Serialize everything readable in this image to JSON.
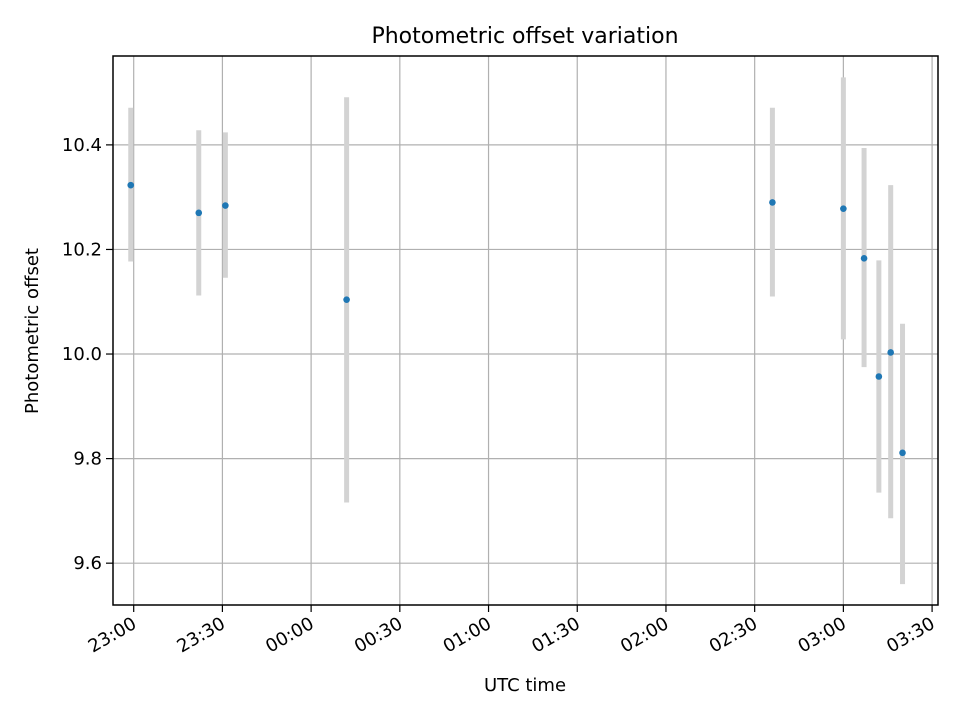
{
  "chart_data": {
    "type": "scatter",
    "title": "Photometric offset variation",
    "xlabel": "UTC time",
    "ylabel": "Photometric offset",
    "x_ticks": [
      "23:00",
      "23:30",
      "00:00",
      "00:30",
      "01:00",
      "01:30",
      "02:00",
      "02:30",
      "03:00",
      "03:30"
    ],
    "y_ticks": [
      "9.6",
      "9.8",
      "10.0",
      "10.2",
      "10.4"
    ],
    "xlim": [
      "22:53",
      "03:32"
    ],
    "ylim": [
      9.52,
      10.57
    ],
    "grid": true,
    "colors": {
      "point": "#1f77b4",
      "errorbar": "#d3d3d3",
      "grid": "#b0b0b0"
    },
    "series": [
      {
        "points": [
          {
            "x": "22:59",
            "y": 10.323,
            "ylow": 10.177,
            "yhigh": 10.471
          },
          {
            "x": "23:22",
            "y": 10.27,
            "ylow": 10.112,
            "yhigh": 10.428
          },
          {
            "x": "23:31",
            "y": 10.284,
            "ylow": 10.146,
            "yhigh": 10.424
          },
          {
            "x": "00:12",
            "y": 10.104,
            "ylow": 9.716,
            "yhigh": 10.491
          },
          {
            "x": "02:36",
            "y": 10.29,
            "ylow": 10.11,
            "yhigh": 10.471
          },
          {
            "x": "03:00",
            "y": 10.278,
            "ylow": 10.028,
            "yhigh": 10.529
          },
          {
            "x": "03:07",
            "y": 10.183,
            "ylow": 9.975,
            "yhigh": 10.394
          },
          {
            "x": "03:12",
            "y": 9.957,
            "ylow": 9.735,
            "yhigh": 10.179
          },
          {
            "x": "03:16",
            "y": 10.003,
            "ylow": 9.686,
            "yhigh": 10.323
          },
          {
            "x": "03:20",
            "y": 9.811,
            "ylow": 9.56,
            "yhigh": 10.058
          }
        ]
      }
    ]
  }
}
